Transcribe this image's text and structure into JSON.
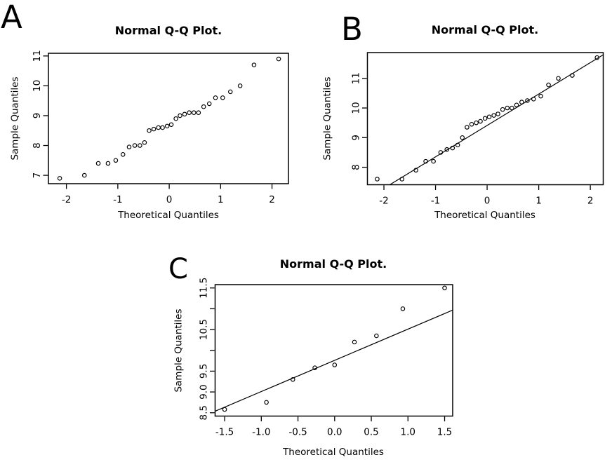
{
  "chart_data": [
    {
      "panel_label": "A",
      "type": "scatter",
      "title": "Normal Q-Q Plot.",
      "xlabel": "Theoretical Quantiles",
      "ylabel": "Sample Quantiles",
      "marker": "open-circle",
      "color": "#000000",
      "grid": false,
      "x": [
        -2.13,
        -1.65,
        -1.38,
        -1.19,
        -1.04,
        -0.9,
        -0.78,
        -0.67,
        -0.57,
        -0.48,
        -0.39,
        -0.3,
        -0.21,
        -0.13,
        -0.04,
        0.04,
        0.13,
        0.21,
        0.3,
        0.39,
        0.48,
        0.57,
        0.67,
        0.78,
        0.9,
        1.04,
        1.19,
        1.38,
        1.65,
        2.13
      ],
      "y": [
        6.9,
        7.0,
        7.4,
        7.4,
        7.5,
        7.7,
        7.95,
        8.0,
        8.0,
        8.1,
        8.5,
        8.55,
        8.6,
        8.6,
        8.65,
        8.7,
        8.9,
        9.0,
        9.05,
        9.1,
        9.1,
        9.1,
        9.3,
        9.4,
        9.6,
        9.6,
        9.8,
        10.0,
        10.7,
        10.9
      ],
      "xlim": [
        -2.35,
        2.32
      ],
      "ylim": [
        6.72,
        11.09
      ],
      "xticks": [
        -2,
        -1,
        0,
        1,
        2
      ],
      "xtick_labels": [
        "-2",
        "-1",
        "0",
        "1",
        "2"
      ],
      "yticks": [
        7,
        8,
        9,
        10,
        11
      ],
      "ytick_labels": [
        "7",
        "8",
        "9",
        "10",
        "11"
      ],
      "ref_line": null
    },
    {
      "panel_label": "B",
      "type": "scatter",
      "title": "Normal Q-Q Plot.",
      "xlabel": "Theoretical Quantiles",
      "ylabel": "Sample Quantiles",
      "marker": "open-circle",
      "color": "#000000",
      "grid": false,
      "x": [
        -2.13,
        -1.65,
        -1.38,
        -1.19,
        -1.04,
        -0.9,
        -0.78,
        -0.67,
        -0.57,
        -0.48,
        -0.39,
        -0.3,
        -0.21,
        -0.13,
        -0.04,
        0.04,
        0.13,
        0.21,
        0.3,
        0.39,
        0.48,
        0.57,
        0.67,
        0.78,
        0.9,
        1.04,
        1.19,
        1.38,
        1.65,
        2.13
      ],
      "y": [
        7.6,
        7.6,
        7.9,
        8.2,
        8.2,
        8.5,
        8.6,
        8.65,
        8.75,
        9.0,
        9.35,
        9.45,
        9.5,
        9.55,
        9.65,
        9.7,
        9.75,
        9.8,
        9.95,
        10.0,
        10.0,
        10.1,
        10.2,
        10.25,
        10.3,
        10.4,
        10.78,
        11.0,
        11.1,
        11.7
      ],
      "xlim": [
        -2.32,
        2.25
      ],
      "ylim": [
        7.41,
        11.87
      ],
      "xticks": [
        -2,
        -1,
        0,
        1,
        2
      ],
      "xtick_labels": [
        "-2",
        "-1",
        "0",
        "1",
        "2"
      ],
      "yticks": [
        8,
        9,
        10,
        11
      ],
      "ytick_labels": [
        "8",
        "9",
        "10",
        "11"
      ],
      "ref_line": {
        "slope": 1.06,
        "intercept": 9.41
      }
    },
    {
      "panel_label": "C",
      "type": "scatter",
      "title": "Normal Q-Q Plot.",
      "xlabel": "Theoretical Quantiles",
      "ylabel": "Sample Quantiles",
      "marker": "open-circle",
      "color": "#000000",
      "grid": false,
      "x": [
        -1.5,
        -0.93,
        -0.57,
        -0.27,
        0.0,
        0.27,
        0.57,
        0.93,
        1.5
      ],
      "y": [
        8.58,
        8.75,
        9.3,
        9.58,
        9.65,
        10.2,
        10.35,
        11.0,
        11.5
      ],
      "xlim": [
        -1.63,
        1.61
      ],
      "ylim": [
        8.42,
        11.58
      ],
      "xticks": [
        -1.5,
        -1.0,
        -0.5,
        0.0,
        0.5,
        1.0,
        1.5
      ],
      "xtick_labels": [
        "-1.5",
        "-1.0",
        "-0.5",
        "0.0",
        "0.5",
        "1.0",
        "1.5"
      ],
      "yticks": [
        8.5,
        9.0,
        9.5,
        10.0,
        10.5,
        11.0,
        11.5
      ],
      "ytick_labels": [
        "8.5",
        "9.0",
        "9.5",
        "",
        "10.5",
        "",
        "11.5"
      ],
      "ref_line": {
        "slope": 0.75,
        "intercept": 9.76
      }
    }
  ]
}
